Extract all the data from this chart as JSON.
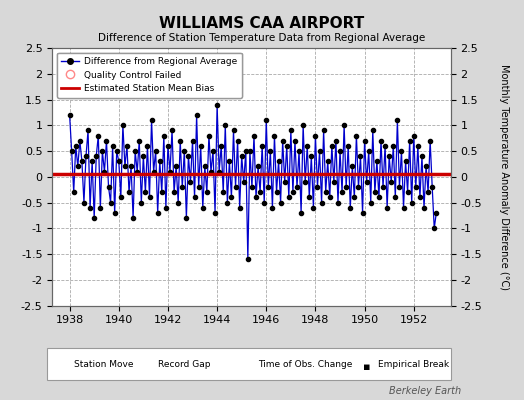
{
  "title": "WILLIAMS CAA AIRPORT",
  "subtitle": "Difference of Station Temperature Data from Regional Average",
  "ylabel": "Monthly Temperature Anomaly Difference (°C)",
  "xlabel_years": [
    1938,
    1940,
    1942,
    1944,
    1946,
    1948,
    1950,
    1952
  ],
  "xlim": [
    1937.3,
    1953.5
  ],
  "ylim": [
    -2.5,
    2.5
  ],
  "yticks": [
    -2.5,
    -2,
    -1.5,
    -1,
    -0.5,
    0,
    0.5,
    1,
    1.5,
    2,
    2.5
  ],
  "mean_bias": 0.05,
  "line_color": "#0000cc",
  "marker_color": "#000000",
  "bias_color": "#cc0000",
  "plot_bg": "#ffffff",
  "fig_bg": "#d8d8d8",
  "watermark": "Berkeley Earth",
  "legend1_items": [
    "Difference from Regional Average",
    "Quality Control Failed",
    "Estimated Station Mean Bias"
  ],
  "legend2_items": [
    "Station Move",
    "Record Gap",
    "Time of Obs. Change",
    "Empirical Break"
  ],
  "data_x": [
    1938.0,
    1938.083,
    1938.167,
    1938.25,
    1938.333,
    1938.417,
    1938.5,
    1938.583,
    1938.667,
    1938.75,
    1938.833,
    1938.917,
    1939.0,
    1939.083,
    1939.167,
    1939.25,
    1939.333,
    1939.417,
    1939.5,
    1939.583,
    1939.667,
    1939.75,
    1939.833,
    1939.917,
    1940.0,
    1940.083,
    1940.167,
    1940.25,
    1940.333,
    1940.417,
    1940.5,
    1940.583,
    1940.667,
    1940.75,
    1940.833,
    1940.917,
    1941.0,
    1941.083,
    1941.167,
    1941.25,
    1941.333,
    1941.417,
    1941.5,
    1941.583,
    1941.667,
    1941.75,
    1941.833,
    1941.917,
    1942.0,
    1942.083,
    1942.167,
    1942.25,
    1942.333,
    1942.417,
    1942.5,
    1942.583,
    1942.667,
    1942.75,
    1942.833,
    1942.917,
    1943.0,
    1943.083,
    1943.167,
    1943.25,
    1943.333,
    1943.417,
    1943.5,
    1943.583,
    1943.667,
    1943.75,
    1943.833,
    1943.917,
    1944.0,
    1944.083,
    1944.167,
    1944.25,
    1944.333,
    1944.417,
    1944.5,
    1944.583,
    1944.667,
    1944.75,
    1944.833,
    1944.917,
    1945.0,
    1945.083,
    1945.167,
    1945.25,
    1945.333,
    1945.417,
    1945.5,
    1945.583,
    1945.667,
    1945.75,
    1945.833,
    1945.917,
    1946.0,
    1946.083,
    1946.167,
    1946.25,
    1946.333,
    1946.417,
    1946.5,
    1946.583,
    1946.667,
    1946.75,
    1946.833,
    1946.917,
    1947.0,
    1947.083,
    1947.167,
    1947.25,
    1947.333,
    1947.417,
    1947.5,
    1947.583,
    1947.667,
    1947.75,
    1947.833,
    1947.917,
    1948.0,
    1948.083,
    1948.167,
    1948.25,
    1948.333,
    1948.417,
    1948.5,
    1948.583,
    1948.667,
    1948.75,
    1948.833,
    1948.917,
    1949.0,
    1949.083,
    1949.167,
    1949.25,
    1949.333,
    1949.417,
    1949.5,
    1949.583,
    1949.667,
    1949.75,
    1949.833,
    1949.917,
    1950.0,
    1950.083,
    1950.167,
    1950.25,
    1950.333,
    1950.417,
    1950.5,
    1950.583,
    1950.667,
    1950.75,
    1950.833,
    1950.917,
    1951.0,
    1951.083,
    1951.167,
    1951.25,
    1951.333,
    1951.417,
    1951.5,
    1951.583,
    1951.667,
    1951.75,
    1951.833,
    1951.917,
    1952.0,
    1952.083,
    1952.167,
    1952.25,
    1952.333,
    1952.417,
    1952.5,
    1952.583,
    1952.667,
    1952.75,
    1952.833,
    1952.917
  ],
  "data_y": [
    1.2,
    0.5,
    -0.3,
    0.6,
    0.2,
    0.7,
    0.3,
    -0.5,
    0.4,
    0.9,
    -0.6,
    0.3,
    -0.8,
    0.4,
    0.8,
    -0.6,
    0.5,
    0.1,
    0.7,
    -0.2,
    -0.5,
    0.6,
    -0.7,
    0.5,
    0.3,
    -0.4,
    1.0,
    0.2,
    0.6,
    -0.3,
    0.2,
    -0.8,
    0.5,
    0.1,
    0.7,
    -0.5,
    0.4,
    -0.3,
    0.6,
    -0.4,
    1.1,
    0.1,
    0.5,
    -0.7,
    0.3,
    -0.3,
    0.8,
    -0.6,
    0.6,
    0.1,
    0.9,
    -0.3,
    0.2,
    -0.5,
    0.7,
    -0.2,
    0.5,
    -0.8,
    0.4,
    -0.1,
    0.7,
    -0.4,
    1.2,
    -0.2,
    0.6,
    -0.6,
    0.2,
    -0.3,
    0.8,
    0.1,
    0.5,
    -0.7,
    1.4,
    0.1,
    0.6,
    -0.3,
    1.0,
    -0.5,
    0.3,
    -0.4,
    0.9,
    -0.2,
    0.7,
    -0.6,
    0.4,
    -0.1,
    0.5,
    -1.6,
    0.5,
    -0.2,
    0.8,
    -0.4,
    0.2,
    -0.3,
    0.6,
    -0.5,
    1.1,
    -0.2,
    0.5,
    -0.6,
    0.8,
    -0.3,
    0.3,
    -0.5,
    0.7,
    -0.1,
    0.6,
    -0.4,
    0.9,
    -0.3,
    0.7,
    -0.2,
    0.5,
    -0.7,
    1.0,
    -0.1,
    0.6,
    -0.4,
    0.4,
    -0.6,
    0.8,
    -0.2,
    0.5,
    -0.5,
    0.9,
    -0.3,
    0.3,
    -0.4,
    0.6,
    -0.1,
    0.7,
    -0.5,
    0.5,
    -0.3,
    1.0,
    -0.2,
    0.6,
    -0.6,
    0.2,
    -0.4,
    0.8,
    -0.2,
    0.4,
    -0.7,
    0.7,
    -0.1,
    0.5,
    -0.5,
    0.9,
    -0.3,
    0.3,
    -0.4,
    0.7,
    -0.2,
    0.6,
    -0.6,
    0.4,
    -0.1,
    0.6,
    -0.4,
    1.1,
    -0.2,
    0.5,
    -0.6,
    0.3,
    -0.3,
    0.7,
    -0.5,
    0.8,
    -0.2,
    0.6,
    -0.4,
    0.4,
    -0.6,
    0.2,
    -0.3,
    0.7,
    -0.2,
    -1.0,
    -0.7
  ]
}
